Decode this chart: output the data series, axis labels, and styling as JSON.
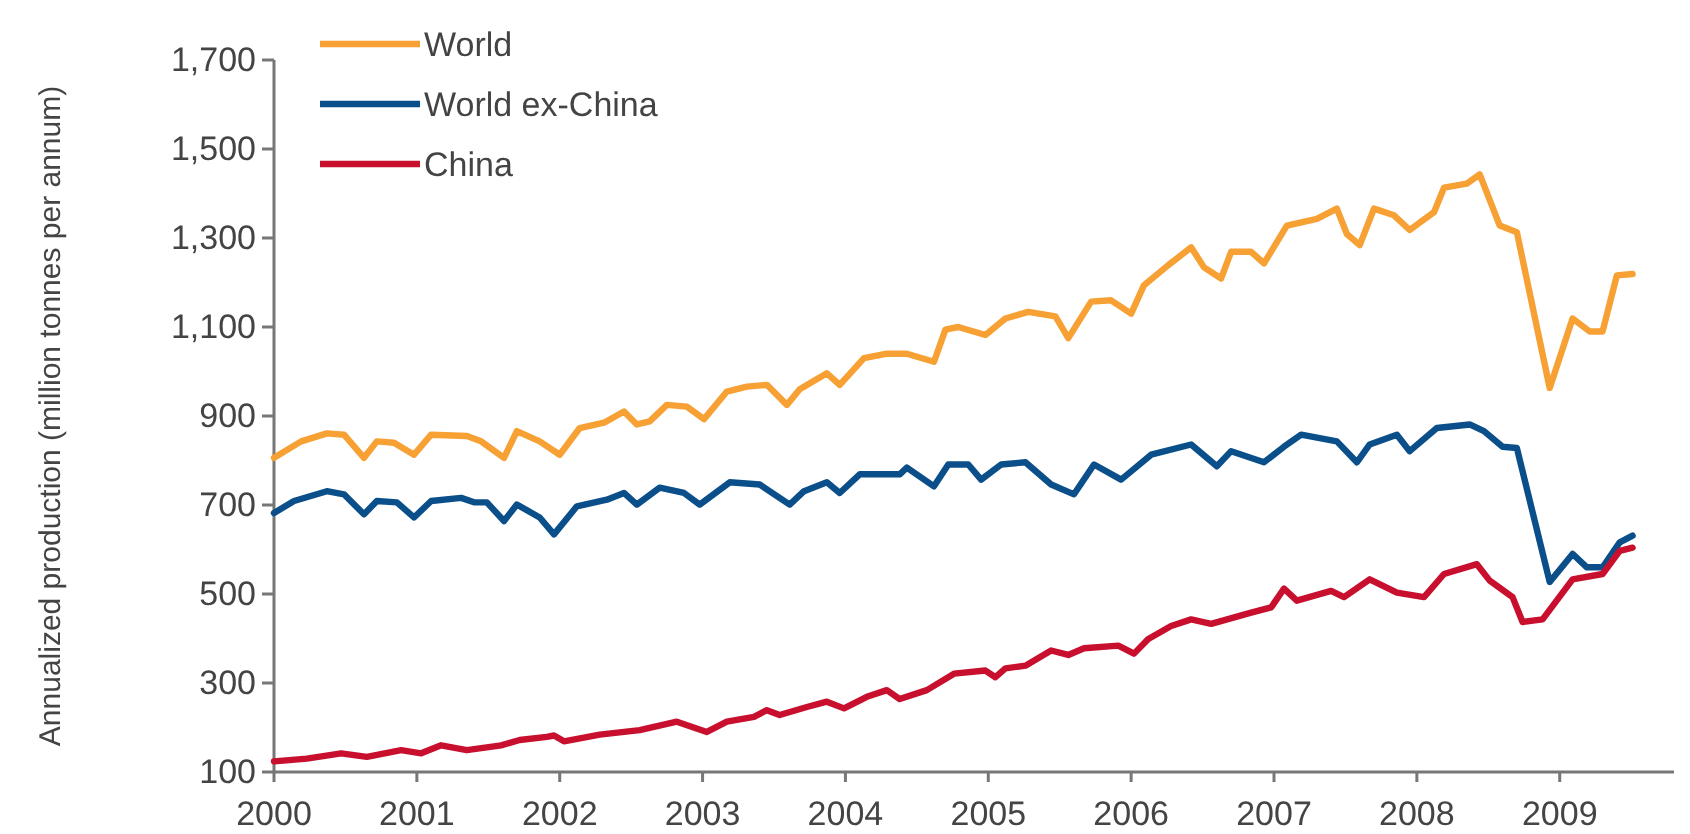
{
  "chart_data": {
    "type": "line",
    "ylabel": "Annualized production (million tonnes per annum)",
    "xlim": [
      2000,
      2009.8
    ],
    "xticks": [
      2000,
      2001,
      2002,
      2003,
      2004,
      2005,
      2006,
      2007,
      2008,
      2009
    ],
    "ylim": [
      100,
      1700
    ],
    "yticks": [
      100,
      300,
      500,
      700,
      900,
      {
        "value": 1100,
        "label": "1,100"
      },
      {
        "value": 1300,
        "label": "1,300"
      },
      {
        "value": 1500,
        "label": "1,500"
      },
      {
        "value": 1700,
        "label": "1,700"
      }
    ],
    "grid": false,
    "legend": "top left",
    "marker": "none",
    "line_style": "solid",
    "series": [
      {
        "name": "World",
        "color": "#f7a034",
        "x": [
          2000.0,
          2000.19,
          2000.37,
          2000.49,
          2000.63,
          2000.72,
          2000.84,
          2000.98,
          2001.1,
          2001.35,
          2001.45,
          2001.61,
          2001.7,
          2001.86,
          2002.0,
          2002.14,
          2002.31,
          2002.45,
          2002.54,
          2002.63,
          2002.75,
          2002.89,
          2003.01,
          2003.17,
          2003.31,
          2003.45,
          2003.59,
          2003.68,
          2003.87,
          2003.96,
          2004.13,
          2004.29,
          2004.43,
          2004.62,
          2004.7,
          2004.79,
          2004.98,
          2005.12,
          2005.28,
          2005.47,
          2005.56,
          2005.72,
          2005.86,
          2006.0,
          2006.09,
          2006.26,
          2006.42,
          2006.51,
          2006.63,
          2006.7,
          2006.84,
          2006.93,
          2007.09,
          2007.3,
          2007.44,
          2007.51,
          2007.6,
          2007.7,
          2007.84,
          2007.95,
          2008.12,
          2008.19,
          2008.35,
          2008.44,
          2008.58,
          2008.7,
          2008.93,
          2009.09,
          2009.21,
          2009.3,
          2009.4,
          2009.51
        ],
        "values": [
          806,
          843,
          861,
          858,
          806,
          843,
          840,
          813,
          858,
          855,
          843,
          806,
          866,
          843,
          813,
          873,
          885,
          910,
          881,
          888,
          925,
          921,
          893,
          955,
          966,
          970,
          925,
          960,
          996,
          970,
          1030,
          1040,
          1040,
          1022,
          1094,
          1100,
          1082,
          1119,
          1134,
          1124,
          1075,
          1157,
          1160,
          1130,
          1194,
          1239,
          1279,
          1234,
          1209,
          1269,
          1269,
          1243,
          1328,
          1343,
          1366,
          1309,
          1284,
          1366,
          1351,
          1318,
          1358,
          1413,
          1422,
          1443,
          1328,
          1313,
          963,
          1119,
          1090,
          1090,
          1216,
          1219
        ]
      },
      {
        "name": "World ex-China",
        "color": "#0b4f8a",
        "x": [
          2000.0,
          2000.14,
          2000.37,
          2000.49,
          2000.63,
          2000.72,
          2000.86,
          2000.98,
          2001.1,
          2001.31,
          2001.4,
          2001.49,
          2001.61,
          2001.7,
          2001.86,
          2001.96,
          2002.12,
          2002.33,
          2002.45,
          2002.54,
          2002.7,
          2002.87,
          2002.98,
          2003.19,
          2003.4,
          2003.61,
          2003.71,
          2003.87,
          2003.96,
          2004.1,
          2004.38,
          2004.43,
          2004.62,
          2004.72,
          2004.86,
          2004.95,
          2005.09,
          2005.26,
          2005.44,
          2005.6,
          2005.74,
          2005.93,
          2006.14,
          2006.42,
          2006.6,
          2006.7,
          2006.93,
          2007.07,
          2007.19,
          2007.44,
          2007.58,
          2007.67,
          2007.86,
          2007.95,
          2008.14,
          2008.37,
          2008.47,
          2008.6,
          2008.7,
          2008.93,
          2009.09,
          2009.19,
          2009.3,
          2009.42,
          2009.51
        ],
        "values": [
          682,
          709,
          731,
          724,
          679,
          709,
          706,
          672,
          709,
          716,
          706,
          706,
          664,
          701,
          672,
          634,
          697,
          712,
          727,
          701,
          739,
          727,
          701,
          751,
          746,
          701,
          731,
          751,
          727,
          769,
          769,
          784,
          742,
          791,
          791,
          757,
          791,
          796,
          746,
          724,
          791,
          757,
          813,
          836,
          787,
          821,
          796,
          831,
          858,
          843,
          796,
          836,
          858,
          821,
          873,
          881,
          866,
          831,
          828,
          527,
          590,
          560,
          560,
          616,
          631
        ]
      },
      {
        "name": "China",
        "color": "#c8102e",
        "x": [
          2000.0,
          2000.23,
          2000.47,
          2000.65,
          2000.89,
          2001.03,
          2001.17,
          2001.35,
          2001.59,
          2001.72,
          2001.91,
          2001.96,
          2002.03,
          2002.28,
          2002.56,
          2002.82,
          2003.03,
          2003.17,
          2003.36,
          2003.45,
          2003.54,
          2003.73,
          2003.87,
          2003.99,
          2004.15,
          2004.29,
          2004.38,
          2004.57,
          2004.76,
          2004.98,
          2005.05,
          2005.12,
          2005.26,
          2005.44,
          2005.56,
          2005.67,
          2005.91,
          2006.02,
          2006.12,
          2006.28,
          2006.42,
          2006.56,
          2006.84,
          2006.98,
          2007.07,
          2007.16,
          2007.4,
          2007.49,
          2007.67,
          2007.86,
          2008.05,
          2008.19,
          2008.42,
          2008.51,
          2008.67,
          2008.74,
          2008.88,
          2009.09,
          2009.3,
          2009.42,
          2009.51
        ],
        "values": [
          124,
          130,
          142,
          134,
          149,
          142,
          160,
          149,
          160,
          172,
          179,
          182,
          169,
          184,
          194,
          213,
          190,
          213,
          224,
          239,
          228,
          246,
          258,
          243,
          269,
          284,
          264,
          284,
          321,
          328,
          313,
          333,
          339,
          373,
          363,
          378,
          384,
          366,
          399,
          428,
          443,
          433,
          458,
          470,
          512,
          485,
          507,
          493,
          533,
          503,
          493,
          545,
          567,
          530,
          493,
          437,
          443,
          533,
          545,
          597,
          604
        ]
      }
    ]
  }
}
